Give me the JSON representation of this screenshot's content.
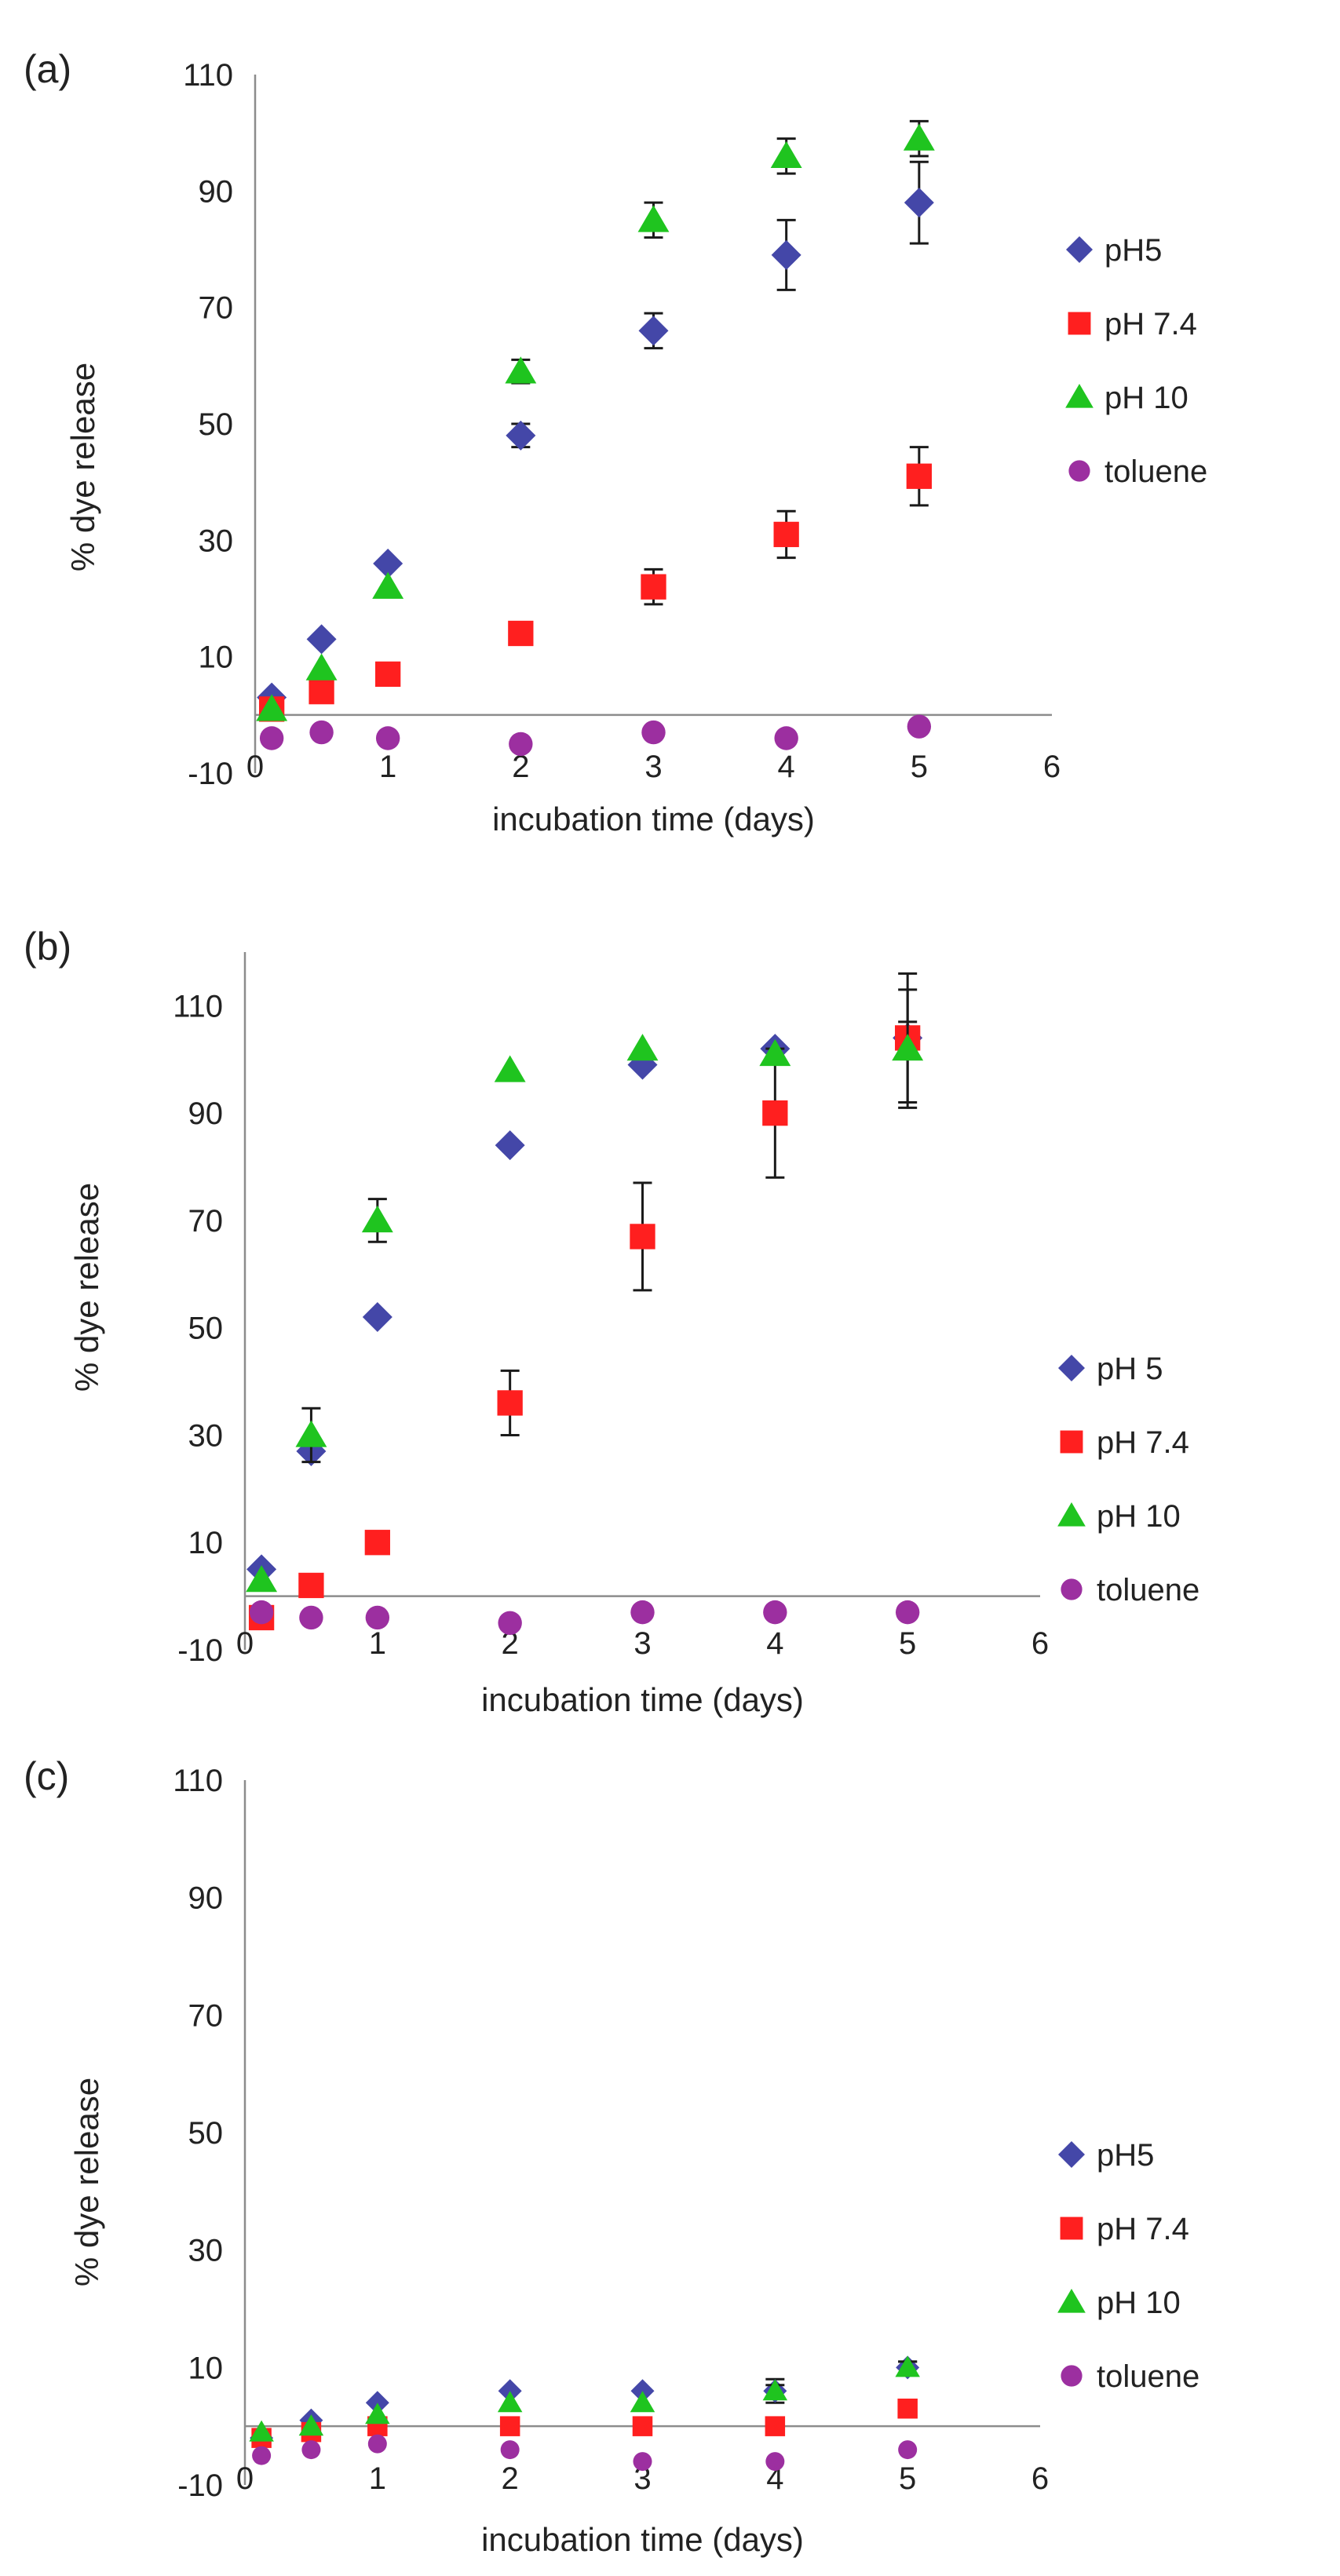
{
  "colors": {
    "pH5": "#4447a8",
    "pH7.4": "#ff1f1f",
    "pH10": "#1fc41f",
    "toluene": "#9c2fa0",
    "error_bar": "#1a1a1a",
    "axis": "#8c8c8c"
  },
  "chart_data": [
    {
      "type": "scatter",
      "panel_label": "(a)",
      "xlabel": "incubation time (days)",
      "ylabel": "% dye release",
      "xlim": [
        0,
        6
      ],
      "ylim": [
        -10,
        110
      ],
      "x_ticks": [
        "0",
        "1",
        "2",
        "3",
        "4",
        "5",
        "6"
      ],
      "y_ticks": [
        "-10",
        "10",
        "30",
        "50",
        "70",
        "90",
        "110"
      ],
      "legend": [
        "pH5",
        "pH 7.4",
        "pH 10",
        "toluene"
      ],
      "series": [
        {
          "name": "pH5",
          "marker": "diamond",
          "x": [
            0.125,
            0.5,
            1,
            2,
            3,
            4,
            5
          ],
          "y": [
            3,
            13,
            26,
            48,
            66,
            79,
            88
          ],
          "err": [
            0,
            0,
            0,
            2,
            3,
            6,
            7
          ]
        },
        {
          "name": "pH 7.4",
          "marker": "square",
          "x": [
            0.125,
            0.5,
            1,
            2,
            3,
            4,
            5
          ],
          "y": [
            1,
            4,
            7,
            14,
            22,
            31,
            41
          ],
          "err": [
            0,
            0,
            0,
            1,
            3,
            4,
            5
          ]
        },
        {
          "name": "pH 10",
          "marker": "triangle",
          "x": [
            0.125,
            0.5,
            1,
            2,
            3,
            4,
            5
          ],
          "y": [
            1,
            8,
            22,
            59,
            85,
            96,
            99
          ],
          "err": [
            0,
            0,
            0,
            2,
            3,
            3,
            3
          ]
        },
        {
          "name": "toluene",
          "marker": "circle",
          "x": [
            0.125,
            0.5,
            1,
            2,
            3,
            4,
            5
          ],
          "y": [
            -4,
            -3,
            -4,
            -5,
            -3,
            -4,
            -2
          ],
          "err": [
            0,
            0,
            0,
            0,
            0,
            0,
            0
          ]
        }
      ]
    },
    {
      "type": "scatter",
      "panel_label": "(b)",
      "xlabel": "incubation time (days)",
      "ylabel": "% dye release",
      "xlim": [
        0,
        6
      ],
      "ylim": [
        -10,
        120
      ],
      "x_ticks": [
        "0",
        "1",
        "2",
        "3",
        "4",
        "5",
        "6"
      ],
      "y_ticks": [
        "-10",
        "10",
        "30",
        "50",
        "70",
        "90",
        "110"
      ],
      "legend": [
        "pH 5",
        "pH 7.4",
        "pH 10",
        "toluene"
      ],
      "series": [
        {
          "name": "pH 5",
          "marker": "diamond",
          "x": [
            0.125,
            0.5,
            1,
            2,
            3,
            4,
            5
          ],
          "y": [
            5,
            27,
            52,
            84,
            99,
            102,
            104
          ],
          "err": [
            0,
            0,
            0,
            0,
            0,
            0,
            12
          ]
        },
        {
          "name": "pH 7.4",
          "marker": "square",
          "x": [
            0.125,
            0.5,
            1,
            2,
            3,
            4,
            5
          ],
          "y": [
            -4,
            2,
            10,
            36,
            67,
            90,
            104
          ],
          "err": [
            0,
            0,
            0,
            6,
            10,
            12,
            3
          ]
        },
        {
          "name": "pH 10",
          "marker": "triangle",
          "x": [
            0.125,
            0.5,
            1,
            2,
            3,
            4,
            5
          ],
          "y": [
            3,
            30,
            70,
            98,
            102,
            101,
            102
          ],
          "err": [
            0,
            5,
            4,
            0,
            0,
            0,
            11
          ]
        },
        {
          "name": "toluene",
          "marker": "circle",
          "x": [
            0.125,
            0.5,
            1,
            2,
            3,
            4,
            5
          ],
          "y": [
            -3,
            -4,
            -4,
            -5,
            -3,
            -3,
            -3
          ],
          "err": [
            0,
            0,
            0,
            0,
            0,
            0,
            0
          ]
        }
      ]
    },
    {
      "type": "scatter",
      "panel_label": "(c)",
      "xlabel": "incubation time (days)",
      "ylabel": "% dye release",
      "xlim": [
        0,
        6
      ],
      "ylim": [
        -10,
        110
      ],
      "x_ticks": [
        "0",
        "1",
        "2",
        "3",
        "4",
        "5",
        "6"
      ],
      "y_ticks": [
        "-10",
        "10",
        "30",
        "50",
        "70",
        "90",
        "110"
      ],
      "legend": [
        "pH5",
        "pH 7.4",
        "pH 10",
        "toluene"
      ],
      "series": [
        {
          "name": "pH5",
          "marker": "diamond",
          "x": [
            0.125,
            0.5,
            1,
            2,
            3,
            4,
            5
          ],
          "y": [
            -2,
            1,
            4,
            6,
            6,
            6,
            10
          ],
          "err": [
            0,
            0,
            0,
            0,
            0,
            2,
            1
          ]
        },
        {
          "name": "pH 7.4",
          "marker": "square",
          "x": [
            0.125,
            0.5,
            1,
            2,
            3,
            4,
            5
          ],
          "y": [
            -2,
            -1,
            0,
            0,
            0,
            0,
            3
          ],
          "err": [
            0,
            0,
            0,
            0,
            0,
            0,
            0
          ]
        },
        {
          "name": "pH 10",
          "marker": "triangle",
          "x": [
            0.125,
            0.5,
            1,
            2,
            3,
            4,
            5
          ],
          "y": [
            -1,
            0,
            2,
            4,
            4,
            6,
            10
          ],
          "err": [
            0,
            0,
            0,
            0,
            0,
            1,
            1
          ]
        },
        {
          "name": "toluene",
          "marker": "circle",
          "x": [
            0.125,
            0.5,
            1,
            2,
            3,
            4,
            5
          ],
          "y": [
            -5,
            -4,
            -3,
            -4,
            -6,
            -6,
            -4
          ],
          "err": [
            0,
            0,
            0,
            0,
            0,
            0,
            0
          ]
        }
      ]
    }
  ]
}
